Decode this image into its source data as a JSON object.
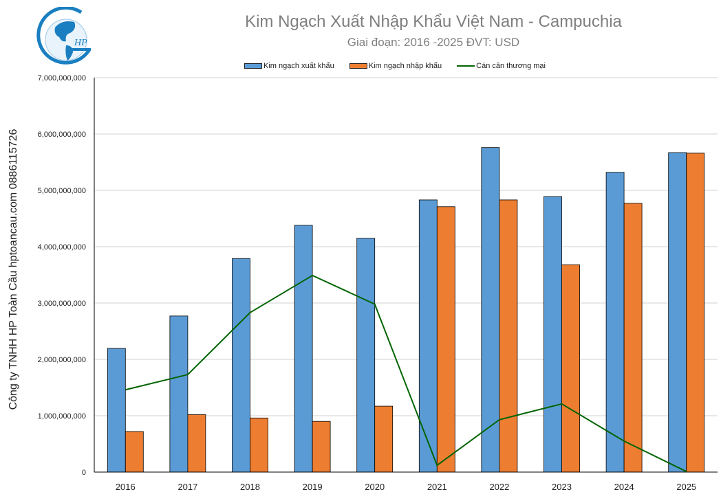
{
  "chart_data": {
    "type": "bar",
    "title": "Kim Ngạch Xuất Nhập Khẩu Việt Nam - Campuchia",
    "subtitle": "Giai đoạn: 2016 -2025  ĐVT: USD",
    "ylabel": "Công ty TNHH HP Toàn Cầu hptoancau.com 0886115726",
    "xlabel": "",
    "categories": [
      "2016",
      "2017",
      "2018",
      "2019",
      "2020",
      "2021",
      "2022",
      "2023",
      "2024",
      "2025"
    ],
    "ylim": [
      0,
      7000000000
    ],
    "yticks": [
      0,
      1000000000,
      2000000000,
      3000000000,
      4000000000,
      5000000000,
      6000000000,
      7000000000
    ],
    "ytick_labels": [
      "0",
      "1,000,000,000",
      "2,000,000,000",
      "3,000,000,000",
      "4,000,000,000",
      "5,000,000,000",
      "6,000,000,000",
      "7,000,000,000"
    ],
    "grid": true,
    "legend_position": "top",
    "series": [
      {
        "name": "Kim ngạch xuất khẩu",
        "kind": "bar",
        "color": "#5b9bd5",
        "values": [
          2195000000,
          2770000000,
          3790000000,
          4380000000,
          4150000000,
          4830000000,
          5760000000,
          4890000000,
          5320000000,
          5670000000
        ]
      },
      {
        "name": "Kim ngạch nhập khẩu",
        "kind": "bar",
        "color": "#ed7d31",
        "values": [
          720000000,
          1020000000,
          960000000,
          900000000,
          1170000000,
          4710000000,
          4830000000,
          3680000000,
          4770000000,
          5660000000
        ]
      },
      {
        "name": "Cán cân thương mại",
        "kind": "line",
        "color": "#006400",
        "values": [
          1460000000,
          1730000000,
          2830000000,
          3490000000,
          2980000000,
          120000000,
          930000000,
          1210000000,
          550000000,
          10000000
        ]
      }
    ]
  },
  "logo": {
    "text": "HP",
    "colors": [
      "#1a7fc1"
    ]
  }
}
